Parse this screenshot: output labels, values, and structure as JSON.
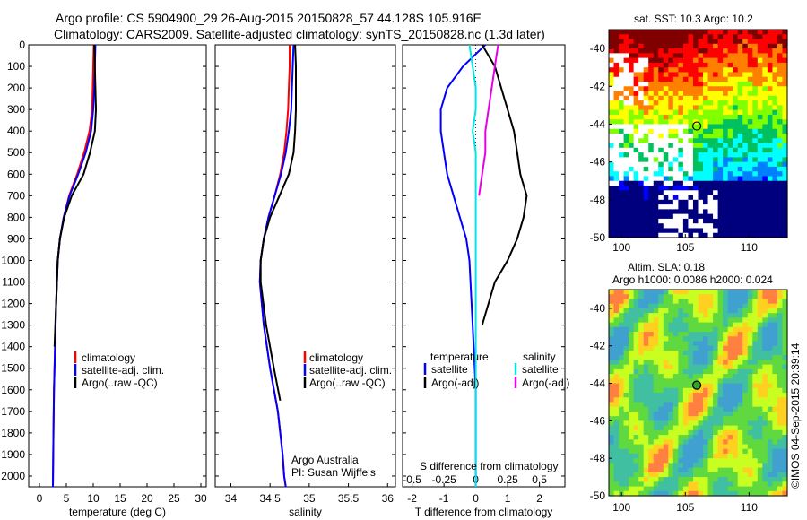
{
  "header": {
    "line1": "Argo profile: CS 5904900_29 26-Aug-2015 20150828_57 44.128S 105.916E",
    "line2": "Climatology: CARS2009. Satellite-adjusted climatology: synTS_20150828.nc (1.3d later)"
  },
  "colors": {
    "climatology": "#ff0000",
    "satellite": "#0000ff",
    "argo": "#000000",
    "sal_satellite": "#00e5e5",
    "sal_argo": "#e500e5"
  },
  "legend_temp": [
    "climatology",
    "satellite-adj. clim.",
    "Argo(..raw -QC)"
  ],
  "legend_sal": [
    "climatology",
    "satellite-adj. clim.",
    "Argo(..raw -QC)"
  ],
  "legend_diff": {
    "temp_header": "temperature",
    "sal_header": "salinity",
    "temp_items": [
      "satellite",
      "Argo(-adj)"
    ],
    "sal_items": [
      "satellite",
      "Argo(-adj)"
    ]
  },
  "credit": {
    "line1": "Argo Australia",
    "line2": "PI: Susan Wijffels"
  },
  "diff_top_label": "S difference from climatology",
  "map_sst": {
    "title": "sat. SST: 10.3 Argo: 10.2",
    "colors": [
      "#00007f",
      "#0000ff",
      "#0080ff",
      "#00ffff",
      "#00c060",
      "#80ff00",
      "#ffff00",
      "#ff8000",
      "#ff0000",
      "#800000"
    ]
  },
  "map_sla": {
    "title1": "Altim. SLA: 0.18",
    "title2": "Argo h1000: 0.0086 h2000: 0.024"
  },
  "stamp": "©IMOS 04-Sep-2015 20:39:14",
  "chart_data": [
    {
      "type": "line",
      "xlabel": "temperature (deg C)",
      "ylabel": "",
      "xlim": [
        -2,
        31
      ],
      "ylim": [
        2050,
        0
      ],
      "x_ticks": [
        0,
        5,
        10,
        15,
        20,
        25,
        30
      ],
      "y_ticks": [
        0,
        100,
        200,
        300,
        400,
        500,
        600,
        700,
        800,
        900,
        1000,
        1100,
        1200,
        1300,
        1400,
        1500,
        1600,
        1700,
        1800,
        1900,
        2000
      ],
      "series": [
        {
          "name": "climatology",
          "color": "#ff0000",
          "x": [
            10.1,
            10.0,
            9.9,
            9.8,
            9.3,
            8.3,
            7.0,
            5.5,
            4.5,
            3.8,
            3.4,
            3.1,
            2.9,
            2.7,
            2.6,
            2.5
          ],
          "y": [
            0,
            100,
            200,
            300,
            400,
            500,
            600,
            700,
            800,
            900,
            1000,
            1200,
            1400,
            1600,
            1800,
            2050
          ]
        },
        {
          "name": "satellite-adj. clim.",
          "color": "#0000ff",
          "x": [
            10.4,
            10.3,
            10.2,
            10.0,
            9.6,
            8.6,
            7.2,
            5.6,
            4.5,
            3.8,
            3.4,
            3.1,
            2.9,
            2.7,
            2.6,
            2.5
          ],
          "y": [
            0,
            100,
            200,
            300,
            400,
            500,
            600,
            700,
            800,
            900,
            1000,
            1200,
            1400,
            1600,
            1800,
            2050
          ]
        },
        {
          "name": "Argo(..raw -QC)",
          "color": "#000000",
          "x": [
            10.2,
            10.3,
            10.4,
            10.5,
            10.3,
            9.4,
            8.2,
            6.0,
            4.6,
            3.8,
            3.4,
            3.1,
            2.8
          ],
          "y": [
            0,
            100,
            200,
            300,
            400,
            500,
            600,
            700,
            800,
            900,
            1000,
            1200,
            1400
          ]
        }
      ]
    },
    {
      "type": "line",
      "xlabel": "salinity",
      "ylabel": "",
      "xlim": [
        33.8,
        36.1
      ],
      "ylim": [
        2050,
        0
      ],
      "x_ticks": [
        34,
        34.5,
        35,
        35.5,
        36
      ],
      "series": [
        {
          "name": "climatology",
          "color": "#ff0000",
          "x": [
            34.75,
            34.75,
            34.74,
            34.73,
            34.71,
            34.68,
            34.63,
            34.56,
            34.48,
            34.42,
            34.38,
            34.37,
            34.42,
            34.5,
            34.6,
            34.66,
            34.68,
            34.7
          ],
          "y": [
            0,
            100,
            200,
            300,
            400,
            500,
            600,
            700,
            800,
            900,
            1000,
            1100,
            1300,
            1500,
            1700,
            1900,
            2000,
            2050
          ]
        },
        {
          "name": "satellite-adj. clim.",
          "color": "#0000ff",
          "x": [
            34.8,
            34.79,
            34.78,
            34.77,
            34.74,
            34.7,
            34.64,
            34.56,
            34.48,
            34.42,
            34.38,
            34.37,
            34.42,
            34.5,
            34.6,
            34.66,
            34.68,
            34.7
          ],
          "y": [
            0,
            100,
            200,
            300,
            400,
            500,
            600,
            700,
            800,
            900,
            1000,
            1100,
            1300,
            1500,
            1700,
            1900,
            2000,
            2050
          ]
        },
        {
          "name": "Argo(..raw -QC)",
          "color": "#000000",
          "x": [
            34.82,
            34.83,
            34.83,
            34.83,
            34.82,
            34.8,
            34.74,
            34.62,
            34.5,
            34.42,
            34.38,
            34.38,
            34.45,
            34.55,
            34.63
          ],
          "y": [
            0,
            100,
            200,
            300,
            400,
            500,
            600,
            700,
            800,
            900,
            1000,
            1100,
            1300,
            1500,
            1650
          ]
        }
      ]
    },
    {
      "type": "line",
      "xlabel": "T difference from climatology",
      "ylabel": "S difference from climatology",
      "xlim": [
        -2.3,
        2.8
      ],
      "ylim": [
        2050,
        0
      ],
      "x_ticks": [
        -2,
        -1,
        0,
        1,
        2
      ],
      "x2_ticks": [
        -0.5,
        -0.25,
        0,
        0.25,
        0.5
      ],
      "series": [
        {
          "name": "temperature satellite",
          "color": "#0000ff",
          "x": [
            0.3,
            -0.4,
            -0.9,
            -1.1,
            -1.1,
            -1.0,
            -0.9,
            -0.7,
            -0.5,
            -0.3,
            -0.2,
            -0.1,
            0.0,
            0.0
          ],
          "y": [
            0,
            100,
            200,
            300,
            400,
            500,
            600,
            700,
            800,
            900,
            1000,
            1300,
            1600,
            2050
          ]
        },
        {
          "name": "temperature Argo(-adj)",
          "color": "#000000",
          "x": [
            0.2,
            0.6,
            0.8,
            1.0,
            1.2,
            1.3,
            1.4,
            1.6,
            1.5,
            1.3,
            1.0,
            0.6,
            0.4,
            0.2
          ],
          "y": [
            0,
            100,
            200,
            300,
            400,
            500,
            600,
            700,
            800,
            900,
            1000,
            1100,
            1200,
            1300
          ]
        },
        {
          "name": "salinity satellite",
          "color": "#00e5e5",
          "x": [
            -0.2,
            -0.1,
            0.0,
            0.0,
            -0.1,
            0.0,
            0.0,
            0.0,
            0.0,
            0.0,
            0.0
          ],
          "y": [
            0,
            100,
            200,
            300,
            400,
            500,
            600,
            800,
            1000,
            1500,
            2050
          ]
        },
        {
          "name": "salinity Argo(-adj)",
          "color": "#e500e5",
          "x": [
            0.7,
            0.6,
            0.5,
            0.4,
            0.3,
            0.3,
            0.2,
            0.1
          ],
          "y": [
            0,
            100,
            200,
            300,
            400,
            500,
            600,
            700
          ]
        }
      ]
    },
    {
      "type": "heatmap",
      "title": "sat. SST: 10.3 Argo: 10.2",
      "xlim": [
        99,
        113
      ],
      "ylim": [
        -50,
        -39
      ],
      "x_ticks": [
        100,
        105,
        110
      ],
      "y_ticks": [
        -40,
        -42,
        -44,
        -46,
        -48,
        -50
      ],
      "marker": {
        "x": 105.9,
        "y": -44.1
      }
    },
    {
      "type": "heatmap",
      "title": "Altim. SLA: 0.18",
      "xlim": [
        99,
        113
      ],
      "ylim": [
        -50,
        -39
      ],
      "x_ticks": [
        100,
        105,
        110
      ],
      "y_ticks": [
        -40,
        -42,
        -44,
        -46,
        -48,
        -50
      ],
      "marker": {
        "x": 105.9,
        "y": -44.1
      }
    }
  ]
}
